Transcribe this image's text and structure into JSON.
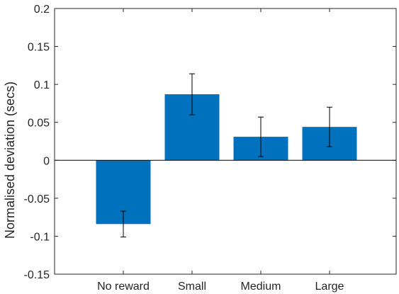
{
  "chart_data": {
    "type": "bar",
    "categories": [
      "No reward",
      "Small",
      "Medium",
      "Large"
    ],
    "values": [
      -0.084,
      0.087,
      0.031,
      0.044
    ],
    "error_low": [
      -0.101,
      0.06,
      0.005,
      0.018
    ],
    "error_high": [
      -0.067,
      0.114,
      0.057,
      0.07
    ],
    "title": "",
    "xlabel": "",
    "ylabel": "Normalised deviation (secs)",
    "ylim": [
      -0.15,
      0.2
    ],
    "yticks": [
      -0.15,
      -0.1,
      -0.05,
      0,
      0.05,
      0.1,
      0.15,
      0.2
    ],
    "ytick_labels": [
      "-0.15",
      "-0.1",
      "-0.05",
      "0",
      "0.05",
      "0.1",
      "0.15",
      "0.2"
    ],
    "grid": false,
    "bar_color": "#0072BD",
    "axis_color": "#262626"
  }
}
